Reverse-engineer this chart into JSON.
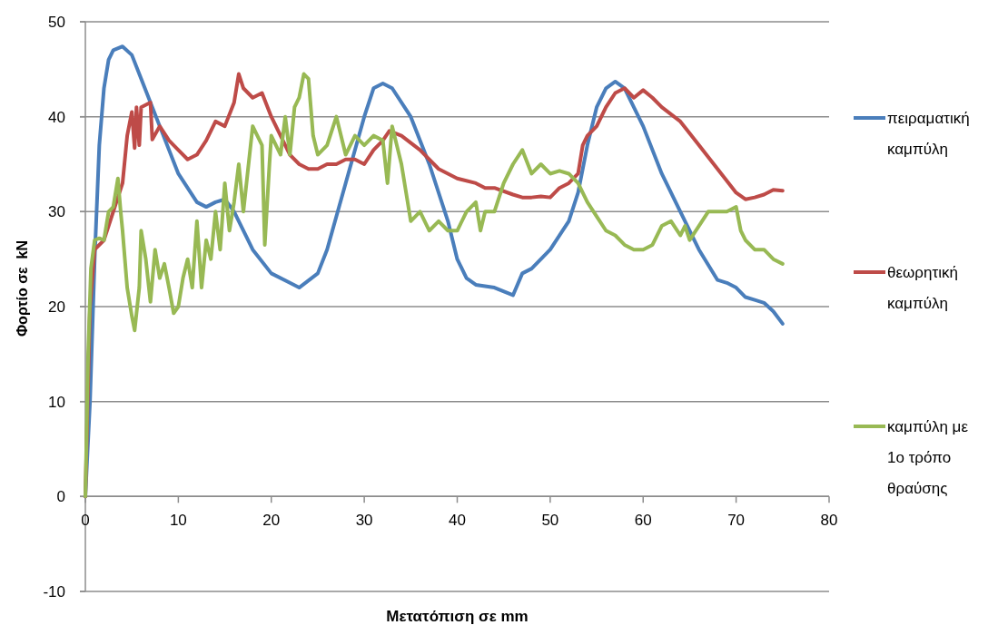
{
  "chart_data": {
    "type": "line",
    "xlabel": "Μετατόπιση σε mm",
    "ylabel": "Φορτίο σε  kN",
    "xlim": [
      0,
      80
    ],
    "ylim": [
      -10,
      50
    ],
    "xticks": [
      0,
      10,
      20,
      30,
      40,
      50,
      60,
      70,
      80
    ],
    "yticks": [
      -10,
      0,
      10,
      20,
      30,
      40,
      50
    ],
    "grid": "y",
    "legend": "right",
    "marker": "none",
    "line_style": "solid",
    "series": [
      {
        "name": "πειραματική καμπύλη",
        "color": "#4a7ebb",
        "x": [
          0,
          0.5,
          1,
          1.5,
          2,
          2.5,
          3,
          4,
          5,
          6,
          8,
          10,
          12,
          13,
          14,
          15,
          16,
          18,
          20,
          22,
          23,
          25,
          26,
          28,
          30,
          31,
          32,
          33,
          35,
          37,
          39,
          40,
          41,
          42,
          44,
          46,
          47,
          48,
          50,
          52,
          53,
          54,
          55,
          56,
          57,
          58,
          60,
          62,
          64,
          66,
          68,
          69,
          70,
          71,
          72,
          73,
          74,
          75
        ],
        "values": [
          0,
          10,
          25,
          37,
          43,
          46,
          47,
          47.4,
          46.5,
          44,
          39,
          34,
          31,
          30.5,
          31,
          31.3,
          30,
          26,
          23.5,
          22.5,
          22,
          23.5,
          26,
          33,
          40,
          43,
          43.5,
          43,
          40,
          35,
          29,
          25,
          23,
          22.3,
          22,
          21.2,
          23.5,
          24,
          26,
          29,
          32,
          37,
          41,
          43,
          43.7,
          43,
          39,
          34,
          30,
          26,
          22.8,
          22.5,
          22,
          21,
          20.7,
          20.4,
          19.5,
          18.2
        ]
      },
      {
        "name": "θεωρητική καμπύλη",
        "color": "#be4b48",
        "x": [
          0,
          0.5,
          1,
          2,
          3,
          3.5,
          4,
          4.5,
          5,
          5.3,
          5.5,
          5.8,
          6,
          7,
          7.2,
          8,
          9,
          10,
          11,
          12,
          13,
          14,
          15,
          16,
          16.5,
          17,
          18,
          19,
          20,
          21,
          22,
          23,
          24,
          25,
          26,
          27,
          28,
          29,
          30,
          31,
          32,
          32.7,
          34,
          36,
          38,
          40,
          42,
          43,
          44,
          46,
          47,
          48,
          49,
          50,
          51,
          52,
          53,
          53.5,
          54,
          55,
          56,
          57,
          58,
          59,
          60,
          61,
          62,
          64,
          66,
          68,
          70,
          71,
          72,
          73,
          74,
          75
        ],
        "values": [
          0,
          20,
          26,
          27,
          30,
          31.5,
          33,
          38,
          40.5,
          36.7,
          41,
          37,
          41,
          41.5,
          37.6,
          39,
          37.5,
          36.5,
          35.5,
          36,
          37.5,
          39.5,
          39,
          41.5,
          44.5,
          43,
          42,
          42.5,
          40,
          38,
          36,
          35,
          34.5,
          34.5,
          35,
          35,
          35.5,
          35.5,
          35,
          36.5,
          37.5,
          38.5,
          38,
          36.5,
          34.5,
          33.5,
          33,
          32.5,
          32.5,
          31.8,
          31.5,
          31.5,
          31.6,
          31.5,
          32.5,
          33,
          34,
          37,
          38,
          39,
          41,
          42.5,
          43,
          42,
          42.8,
          42,
          41,
          39.5,
          37,
          34.5,
          32,
          31.3,
          31.5,
          31.8,
          32.3,
          32.2
        ]
      },
      {
        "name": "καμπύλη με 1ο τρόπο θραύσης",
        "color": "#98b954",
        "x": [
          0,
          0.3,
          0.6,
          1,
          1.5,
          2,
          2.5,
          3,
          3.5,
          3.8,
          4,
          4.5,
          5,
          5.3,
          5.8,
          6,
          6.5,
          7,
          7.5,
          8,
          8.5,
          9,
          9.5,
          10,
          10.5,
          11,
          11.5,
          12,
          12.5,
          13,
          13.5,
          14,
          14.5,
          15,
          15.5,
          16,
          16.5,
          17,
          18,
          19,
          19.3,
          19.8,
          20,
          21,
          21.5,
          22,
          22.5,
          23,
          23.5,
          24,
          24.5,
          25,
          26,
          27,
          28,
          29,
          30,
          31,
          32,
          32.5,
          33,
          34,
          35,
          36,
          37,
          38,
          39,
          40,
          41,
          42,
          42.5,
          43,
          44,
          45,
          46,
          47,
          48,
          49,
          50,
          51,
          52,
          53,
          54,
          55,
          56,
          57,
          58,
          59,
          60,
          61,
          62,
          63,
          64,
          64.5,
          65,
          66,
          67,
          68,
          69,
          70,
          70.5,
          71,
          72,
          73,
          74,
          75
        ],
        "values": [
          0,
          15,
          24,
          27,
          27.2,
          27,
          30,
          30.5,
          33.5,
          30,
          28,
          22,
          19,
          17.5,
          22,
          28,
          25,
          20.5,
          26,
          23,
          24.5,
          22,
          19.3,
          20,
          23,
          25,
          22,
          29,
          22,
          27,
          25,
          30,
          26,
          33,
          28,
          31,
          35,
          30,
          39,
          37,
          26.5,
          35,
          38,
          36,
          40,
          36,
          41,
          42,
          44.5,
          44,
          38,
          36,
          37,
          40,
          36,
          38,
          37,
          38,
          37.5,
          33,
          39,
          35,
          29,
          30,
          28,
          29,
          28,
          28,
          30,
          31,
          28,
          30,
          30,
          33,
          35,
          36.5,
          34,
          35,
          34,
          34.3,
          34,
          33,
          31,
          29.5,
          28,
          27.5,
          26.5,
          26,
          26,
          26.5,
          28.5,
          29,
          27.5,
          28.5,
          27,
          28.5,
          30,
          30,
          30,
          30.5,
          28,
          27,
          26,
          26,
          25,
          24.5
        ]
      }
    ]
  }
}
